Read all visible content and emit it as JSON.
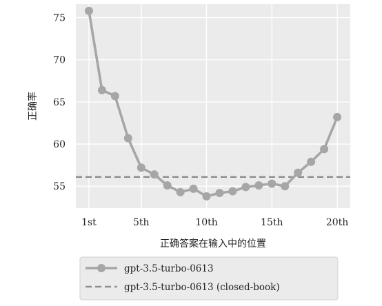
{
  "chart_data": {
    "type": "line",
    "xlabel": "正确答案在输入中的位置",
    "ylabel": "正确率",
    "x_ticks": [
      {
        "value": 1,
        "label": "1st"
      },
      {
        "value": 5,
        "label": "5th"
      },
      {
        "value": 10,
        "label": "10th"
      },
      {
        "value": 15,
        "label": "15th"
      },
      {
        "value": 20,
        "label": "20th"
      }
    ],
    "y_ticks": [
      55,
      60,
      65,
      70,
      75
    ],
    "xlim": [
      0,
      21
    ],
    "ylim": [
      52.4,
      76.6
    ],
    "grid": true,
    "legend_position": "bottom",
    "colors": {
      "plot_background": "#ebebeb",
      "grid": "#ffffff",
      "series": "#a6a6a6",
      "reference": "#8f8f8f"
    },
    "series": [
      {
        "name": "gpt-3.5-turbo-0613",
        "style": "line-with-markers",
        "x": [
          1,
          2,
          3,
          4,
          5,
          6,
          7,
          8,
          9,
          10,
          11,
          12,
          13,
          14,
          15,
          16,
          17,
          18,
          19,
          20
        ],
        "values": [
          75.8,
          66.4,
          65.7,
          60.7,
          57.2,
          56.4,
          55.1,
          54.3,
          54.7,
          53.8,
          54.2,
          54.4,
          54.9,
          55.1,
          55.3,
          55.0,
          56.6,
          57.9,
          59.4,
          63.2
        ]
      }
    ],
    "reference_lines": [
      {
        "name": "gpt-3.5-turbo-0613 (closed-book)",
        "style": "dashed",
        "y": 56.1
      }
    ]
  }
}
